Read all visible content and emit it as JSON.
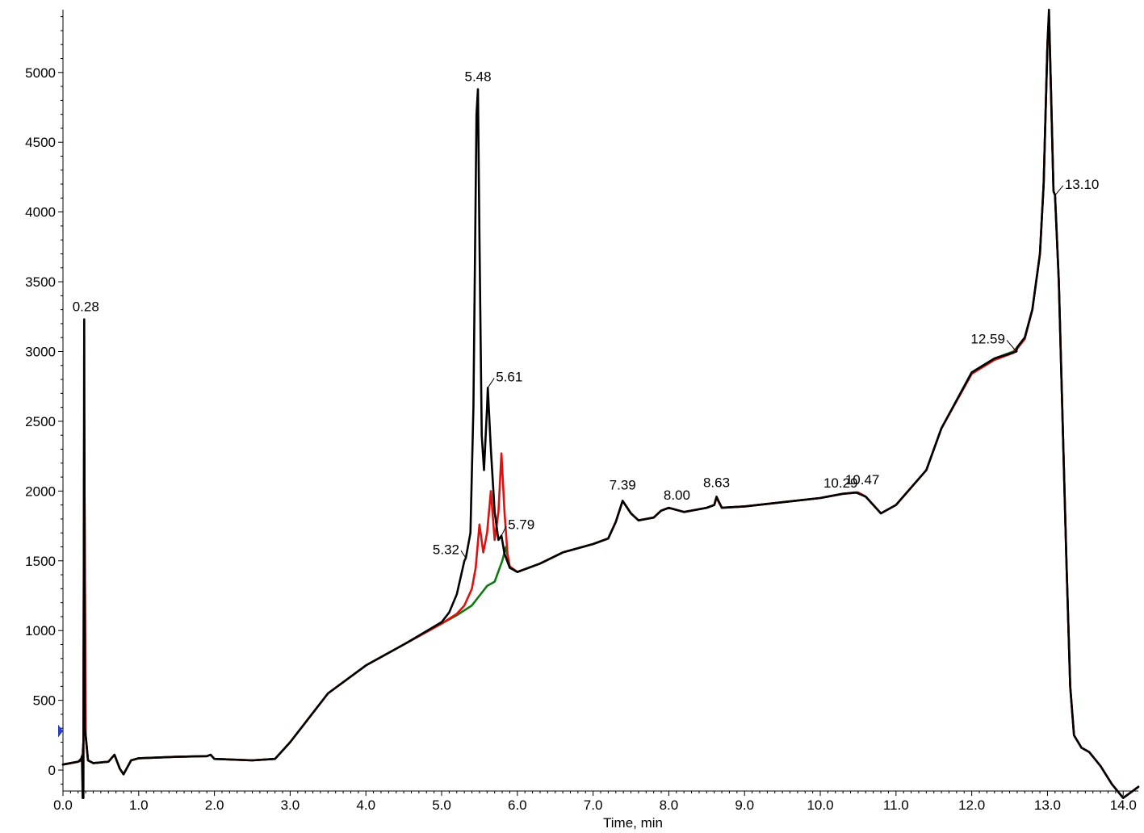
{
  "chart_data": {
    "type": "line",
    "title": "",
    "xlabel": "Time, min",
    "ylabel": "",
    "xlim": [
      0.0,
      14.2
    ],
    "ylim": [
      -150,
      5450
    ],
    "grid": false,
    "legend": "none",
    "x_ticks": [
      0.0,
      1.0,
      2.0,
      3.0,
      4.0,
      5.0,
      6.0,
      7.0,
      8.0,
      9.0,
      10.0,
      11.0,
      12.0,
      13.0,
      14.0
    ],
    "x_tick_labels": [
      "0.0",
      "1.0",
      "2.0",
      "3.0",
      "4.0",
      "5.0",
      "6.0",
      "7.0",
      "8.0",
      "9.0",
      "10.0",
      "11.0",
      "12.0",
      "13.0",
      "14.0"
    ],
    "y_ticks": [
      0,
      500,
      1000,
      1500,
      2000,
      2500,
      3000,
      3500,
      4000,
      4500,
      5000
    ],
    "y_tick_labels": [
      "0",
      "500",
      "1000",
      "1500",
      "2000",
      "2500",
      "3000",
      "3500",
      "4000",
      "4500",
      "5000"
    ],
    "marker_y": 280,
    "colors": {
      "black_trace": "#000000",
      "red_trace": "#e01010",
      "green_trace": "#107a10",
      "marker": "#2a3fc4"
    },
    "series": [
      {
        "color": "#107a10",
        "x": [
          0.0,
          0.2,
          0.25,
          0.27,
          0.28,
          0.3,
          0.33,
          0.4,
          0.6,
          0.68,
          0.75,
          0.8,
          0.9,
          1.0,
          1.5,
          1.9,
          1.95,
          2.0,
          2.5,
          2.8,
          3.0,
          3.5,
          4.0,
          4.5,
          5.0,
          5.2,
          5.4,
          5.5,
          5.6,
          5.7,
          5.8,
          5.85,
          5.9,
          6.0,
          6.3,
          6.6,
          7.0,
          7.2,
          7.3,
          7.39,
          7.5,
          7.6,
          7.8,
          7.9,
          8.0,
          8.2,
          8.5,
          8.6,
          8.63,
          8.7,
          9.0,
          9.5,
          10.0,
          10.3,
          10.5,
          10.6,
          10.8,
          11.0,
          11.4,
          11.6,
          12.0,
          12.3,
          12.55,
          12.6,
          12.7,
          12.8,
          12.9,
          12.95,
          13.0,
          13.02,
          13.05,
          13.08,
          13.1,
          13.15,
          13.2,
          13.25,
          13.3,
          13.35,
          13.45,
          13.55,
          13.7,
          13.85,
          14.0,
          14.2
        ],
        "y": [
          40,
          60,
          70,
          200,
          2450,
          250,
          70,
          50,
          60,
          110,
          10,
          -30,
          70,
          85,
          95,
          100,
          110,
          80,
          70,
          80,
          200,
          550,
          750,
          900,
          1050,
          1110,
          1180,
          1250,
          1320,
          1350,
          1500,
          1600,
          1450,
          1420,
          1480,
          1560,
          1620,
          1660,
          1780,
          1930,
          1840,
          1790,
          1810,
          1860,
          1880,
          1850,
          1880,
          1900,
          1950,
          1880,
          1890,
          1920,
          1950,
          1980,
          1990,
          1960,
          1840,
          1900,
          2150,
          2450,
          2850,
          2950,
          3000,
          3030,
          3100,
          3300,
          3700,
          4200,
          5200,
          5400,
          4800,
          4150,
          4120,
          3500,
          2500,
          1500,
          600,
          250,
          160,
          130,
          30,
          -100,
          -200,
          -120
        ]
      },
      {
        "color": "#e01010",
        "x": [
          0.0,
          0.2,
          0.25,
          0.27,
          0.28,
          0.3,
          0.33,
          0.4,
          0.6,
          0.68,
          0.75,
          0.8,
          0.9,
          1.0,
          1.5,
          1.9,
          1.95,
          2.0,
          2.5,
          2.8,
          3.0,
          3.5,
          4.0,
          4.5,
          5.0,
          5.2,
          5.3,
          5.4,
          5.45,
          5.5,
          5.55,
          5.6,
          5.65,
          5.7,
          5.75,
          5.79,
          5.83,
          5.87,
          5.9,
          6.0,
          6.3,
          6.6,
          7.0,
          7.2,
          7.3,
          7.39,
          7.5,
          7.6,
          7.8,
          7.9,
          8.0,
          8.2,
          8.5,
          8.6,
          8.63,
          8.7,
          9.0,
          9.5,
          10.0,
          10.3,
          10.5,
          10.6,
          10.8,
          11.0,
          11.4,
          11.6,
          12.0,
          12.3,
          12.55,
          12.6,
          12.7,
          12.8,
          12.9,
          12.95,
          13.0,
          13.02,
          13.05,
          13.08,
          13.1,
          13.15,
          13.2,
          13.25,
          13.3,
          13.35,
          13.45,
          13.55,
          13.7,
          13.85,
          14.0,
          14.2
        ],
        "y": [
          40,
          60,
          70,
          200,
          2500,
          250,
          70,
          50,
          60,
          110,
          10,
          -30,
          70,
          85,
          95,
          100,
          110,
          80,
          70,
          80,
          200,
          550,
          750,
          900,
          1050,
          1120,
          1180,
          1300,
          1450,
          1760,
          1560,
          1700,
          2000,
          1650,
          1850,
          2270,
          1850,
          1550,
          1460,
          1420,
          1480,
          1560,
          1620,
          1660,
          1780,
          1930,
          1840,
          1790,
          1810,
          1860,
          1880,
          1850,
          1880,
          1900,
          1950,
          1880,
          1890,
          1920,
          1950,
          1980,
          1990,
          1960,
          1840,
          1900,
          2150,
          2450,
          2840,
          2940,
          2990,
          3020,
          3090,
          3300,
          3700,
          4200,
          5200,
          5400,
          4800,
          4150,
          4120,
          3500,
          2500,
          1500,
          600,
          250,
          160,
          130,
          30,
          -100,
          -200,
          -120
        ]
      },
      {
        "color": "#000000",
        "x": [
          0.0,
          0.2,
          0.24,
          0.25,
          0.26,
          0.27,
          0.28,
          0.29,
          0.3,
          0.33,
          0.4,
          0.6,
          0.68,
          0.75,
          0.8,
          0.9,
          1.0,
          1.5,
          1.9,
          1.95,
          2.0,
          2.5,
          2.8,
          3.0,
          3.5,
          4.0,
          4.5,
          5.0,
          5.1,
          5.2,
          5.3,
          5.32,
          5.38,
          5.42,
          5.46,
          5.48,
          5.5,
          5.53,
          5.56,
          5.6,
          5.61,
          5.65,
          5.7,
          5.75,
          5.79,
          5.83,
          5.9,
          6.0,
          6.3,
          6.6,
          7.0,
          7.2,
          7.3,
          7.39,
          7.5,
          7.6,
          7.8,
          7.9,
          8.0,
          8.2,
          8.5,
          8.6,
          8.63,
          8.7,
          9.0,
          9.5,
          10.0,
          10.29,
          10.47,
          10.6,
          10.8,
          11.0,
          11.4,
          11.6,
          12.0,
          12.3,
          12.59,
          12.6,
          12.7,
          12.8,
          12.9,
          12.95,
          13.0,
          13.02,
          13.05,
          13.08,
          13.1,
          13.15,
          13.2,
          13.25,
          13.3,
          13.35,
          13.45,
          13.55,
          13.7,
          13.85,
          14.0,
          14.2
        ],
        "y": [
          40,
          60,
          80,
          100,
          -200,
          -200,
          3230,
          300,
          250,
          70,
          50,
          60,
          110,
          10,
          -30,
          70,
          85,
          95,
          100,
          110,
          80,
          70,
          80,
          200,
          550,
          750,
          900,
          1060,
          1130,
          1260,
          1500,
          1520,
          1700,
          2600,
          4700,
          4880,
          3800,
          2400,
          2150,
          2600,
          2740,
          2300,
          1850,
          1650,
          1680,
          1550,
          1450,
          1420,
          1480,
          1560,
          1620,
          1660,
          1780,
          1930,
          1840,
          1790,
          1810,
          1860,
          1880,
          1850,
          1880,
          1900,
          1960,
          1880,
          1890,
          1920,
          1950,
          1980,
          1990,
          1960,
          1840,
          1900,
          2150,
          2450,
          2850,
          2950,
          3000,
          3030,
          3100,
          3300,
          3700,
          4200,
          5200,
          5450,
          4800,
          4150,
          4120,
          3500,
          2500,
          1500,
          600,
          250,
          160,
          130,
          30,
          -100,
          -200,
          -120
        ]
      }
    ],
    "annotations": [
      {
        "text": "0.28",
        "x": 0.28,
        "y": 3230
      },
      {
        "text": "5.48",
        "x": 5.48,
        "y": 4880
      },
      {
        "text": "5.61",
        "x": 5.61,
        "y": 2740
      },
      {
        "text": "5.32",
        "x": 5.32,
        "y": 1520
      },
      {
        "text": "5.79",
        "x": 5.79,
        "y": 1680
      },
      {
        "text": "7.39",
        "x": 7.39,
        "y": 1930
      },
      {
        "text": "8.00",
        "x": 8.0,
        "y": 1880
      },
      {
        "text": "8.63",
        "x": 8.63,
        "y": 1960
      },
      {
        "text": "10.29",
        "x": 10.29,
        "y": 1980
      },
      {
        "text": "10.47",
        "x": 10.47,
        "y": 1990
      },
      {
        "text": "12.59",
        "x": 12.59,
        "y": 3000
      },
      {
        "text": "13.10",
        "x": 13.1,
        "y": 4120
      }
    ]
  }
}
